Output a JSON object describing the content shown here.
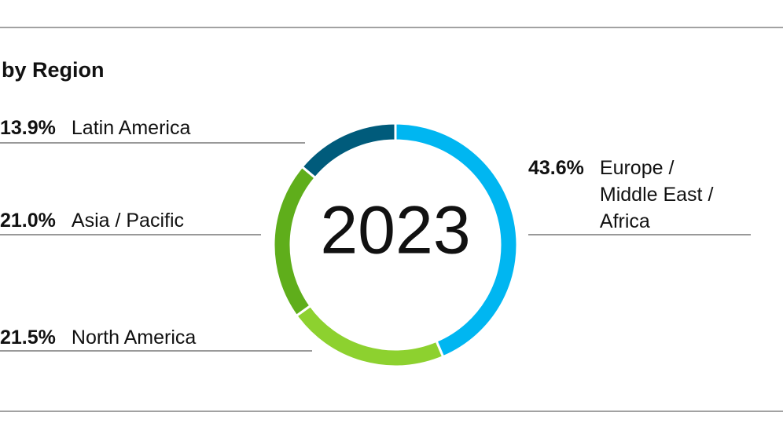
{
  "chart_data": {
    "type": "donut",
    "title": "by Region",
    "center_label": "2023",
    "categories": [
      "Europe / Middle East / Africa",
      "North America",
      "Asia / Pacific",
      "Latin America"
    ],
    "values": [
      43.6,
      21.5,
      21.0,
      13.9
    ],
    "value_labels": [
      "43.6%",
      "21.5%",
      "21.0%",
      "13.9%"
    ],
    "colors": [
      "#00b6f1",
      "#8dd12f",
      "#5fae1b",
      "#005b7b"
    ]
  }
}
